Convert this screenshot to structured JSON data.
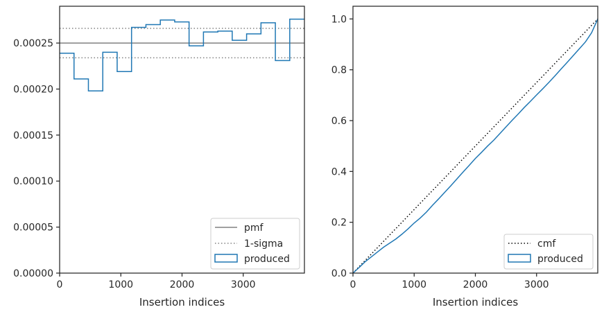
{
  "chart_data": [
    {
      "type": "line",
      "xlabel": "Insertion indices",
      "xlim": [
        0,
        4000
      ],
      "ylim": [
        0,
        0.00029
      ],
      "x_ticks": [
        0,
        1000,
        2000,
        3000
      ],
      "x_tick_labels": [
        "0",
        "1000",
        "2000",
        "3000"
      ],
      "y_ticks": [
        0,
        5e-05,
        0.0001,
        0.00015,
        0.0002,
        0.00025
      ],
      "y_tick_labels": [
        "0.00000",
        "0.00005",
        "0.00010",
        "0.00015",
        "0.00020",
        "0.00025"
      ],
      "legend_position": "lower-right",
      "legend": [
        "pmf",
        "1-sigma",
        "produced"
      ],
      "series": [
        {
          "name": "pmf",
          "style": "solid",
          "color": "#808080",
          "y": 0.00025
        },
        {
          "name": "1-sigma",
          "style": "dotted",
          "color": "#808080",
          "y_values": [
            0.000266,
            0.000234
          ]
        },
        {
          "name": "produced",
          "style": "step",
          "color": "#1f77b4",
          "bin_edges": [
            0,
            235,
            470,
            705,
            940,
            1175,
            1410,
            1645,
            1880,
            2115,
            2350,
            2585,
            2820,
            3055,
            3290,
            3525,
            3760,
            4000
          ],
          "values": [
            0.000239,
            0.000211,
            0.000198,
            0.00024,
            0.000219,
            0.000267,
            0.00027,
            0.000275,
            0.000273,
            0.000247,
            0.000262,
            0.000263,
            0.000253,
            0.00026,
            0.000272,
            0.000231,
            0.000276
          ]
        }
      ]
    },
    {
      "type": "line",
      "xlabel": "Insertion indices",
      "xlim": [
        0,
        4000
      ],
      "ylim": [
        0,
        1.05
      ],
      "x_ticks": [
        0,
        1000,
        2000,
        3000
      ],
      "x_tick_labels": [
        "0",
        "1000",
        "2000",
        "3000"
      ],
      "y_ticks": [
        0,
        0.2,
        0.4,
        0.6,
        0.8,
        1.0
      ],
      "y_tick_labels": [
        "0.0",
        "0.2",
        "0.4",
        "0.6",
        "0.8",
        "1.0"
      ],
      "legend_position": "lower-right",
      "legend": [
        "cmf",
        "produced"
      ],
      "series": [
        {
          "name": "cmf",
          "style": "dotted",
          "color": "#000000",
          "x": [
            0,
            4000
          ],
          "y": [
            0,
            1.0
          ]
        },
        {
          "name": "produced",
          "style": "solid",
          "color": "#1f77b4",
          "x": [
            0,
            100,
            200,
            300,
            400,
            500,
            600,
            700,
            800,
            900,
            1000,
            1100,
            1200,
            1300,
            1400,
            1500,
            1600,
            1700,
            1800,
            1900,
            2000,
            2100,
            2200,
            2300,
            2400,
            2500,
            2600,
            2700,
            2800,
            2900,
            3000,
            3100,
            3200,
            3300,
            3400,
            3500,
            3600,
            3700,
            3800,
            3900,
            4000
          ],
          "y": [
            0,
            0.022,
            0.045,
            0.064,
            0.083,
            0.102,
            0.118,
            0.134,
            0.153,
            0.174,
            0.197,
            0.217,
            0.24,
            0.267,
            0.292,
            0.318,
            0.344,
            0.371,
            0.398,
            0.424,
            0.451,
            0.475,
            0.5,
            0.523,
            0.549,
            0.575,
            0.601,
            0.626,
            0.652,
            0.676,
            0.701,
            0.725,
            0.75,
            0.776,
            0.803,
            0.829,
            0.856,
            0.883,
            0.91,
            0.946,
            1.0
          ]
        }
      ]
    }
  ]
}
